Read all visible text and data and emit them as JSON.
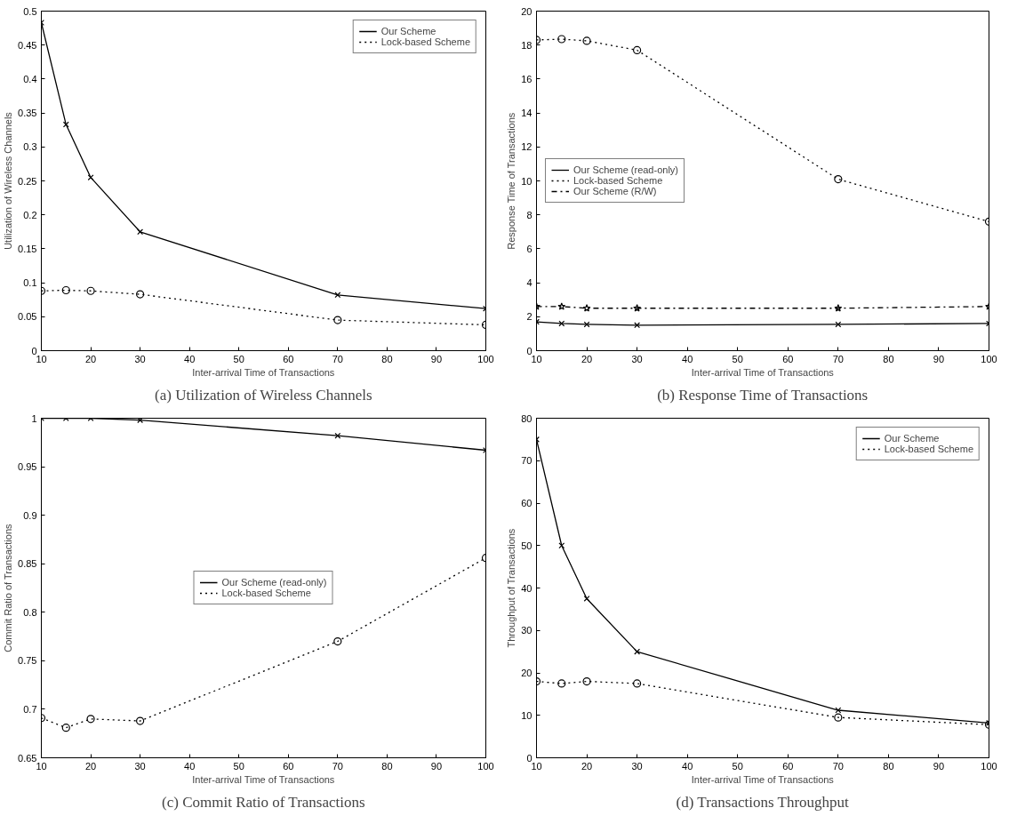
{
  "chart_data": [
    {
      "type": "line",
      "title": "(a) Utilization of Wireless Channels",
      "xlabel": "Inter-arrival Time of Transactions",
      "ylabel": "Utilization of Wireless Channels",
      "x": [
        10,
        15,
        20,
        30,
        70,
        100
      ],
      "xlim": [
        10,
        100
      ],
      "xticks": [
        10,
        20,
        30,
        40,
        50,
        60,
        70,
        80,
        90,
        100
      ],
      "ylim": [
        0,
        0.5
      ],
      "yticks": [
        0,
        0.05,
        0.1,
        0.15,
        0.2,
        0.25,
        0.3,
        0.35,
        0.4,
        0.45,
        0.5
      ],
      "grid": false,
      "legend": "top right",
      "series": [
        {
          "name": "Our Scheme",
          "color": "#000000",
          "marker": "cross",
          "line_style": "solid",
          "values": [
            0.483,
            0.333,
            0.255,
            0.175,
            0.082,
            0.062
          ]
        },
        {
          "name": "Lock-based Scheme",
          "color": "#000000",
          "marker": "circle",
          "line_style": "dotted",
          "values": [
            0.088,
            0.089,
            0.088,
            0.083,
            0.045,
            0.038
          ]
        }
      ]
    },
    {
      "type": "line",
      "title": "(b) Response Time of Transactions",
      "xlabel": "Inter-arrival Time of Transactions",
      "ylabel": "Response Time of Transactions",
      "x": [
        10,
        15,
        20,
        30,
        70,
        100
      ],
      "xlim": [
        10,
        100
      ],
      "xticks": [
        10,
        20,
        30,
        40,
        50,
        60,
        70,
        80,
        90,
        100
      ],
      "ylim": [
        0,
        20
      ],
      "yticks": [
        0,
        2,
        4,
        6,
        8,
        10,
        12,
        14,
        16,
        18,
        20
      ],
      "grid": false,
      "legend": "left",
      "series": [
        {
          "name": "Our Scheme (read-only)",
          "color": "#000000",
          "marker": "cross",
          "line_style": "solid",
          "values": [
            1.7,
            1.6,
            1.55,
            1.5,
            1.55,
            1.6
          ]
        },
        {
          "name": "Lock-based Scheme",
          "color": "#000000",
          "marker": "circle",
          "line_style": "dotted",
          "values": [
            18.3,
            18.35,
            18.25,
            17.7,
            10.1,
            7.6
          ]
        },
        {
          "name": "Our Scheme (R/W)",
          "color": "#000000",
          "marker": "star",
          "line_style": "dashdot",
          "values": [
            2.6,
            2.6,
            2.5,
            2.5,
            2.5,
            2.6
          ]
        }
      ]
    },
    {
      "type": "line",
      "title": "(c) Commit Ratio of Transactions",
      "xlabel": "Inter-arrival Time of Transactions",
      "ylabel": "Commit Ratio of Transactions",
      "x": [
        10,
        15,
        20,
        30,
        70,
        100
      ],
      "xlim": [
        10,
        100
      ],
      "xticks": [
        10,
        20,
        30,
        40,
        50,
        60,
        70,
        80,
        90,
        100
      ],
      "ylim": [
        0.65,
        1
      ],
      "yticks": [
        0.65,
        0.7,
        0.75,
        0.8,
        0.85,
        0.9,
        0.95,
        1
      ],
      "grid": false,
      "legend": "center",
      "series": [
        {
          "name": "Our Scheme (read-only)",
          "color": "#000000",
          "marker": "cross",
          "line_style": "solid",
          "values": [
            1.0,
            1.0,
            1.0,
            0.998,
            0.982,
            0.967
          ]
        },
        {
          "name": "Lock-based Scheme",
          "color": "#000000",
          "marker": "circle",
          "line_style": "dotted",
          "values": [
            0.691,
            0.681,
            0.69,
            0.688,
            0.77,
            0.856
          ]
        }
      ]
    },
    {
      "type": "line",
      "title": "(d) Transactions Throughput",
      "xlabel": "Inter-arrival Time of Transactions",
      "ylabel": "Throughput of Transactions",
      "x": [
        10,
        15,
        20,
        30,
        70,
        100
      ],
      "xlim": [
        10,
        100
      ],
      "xticks": [
        10,
        20,
        30,
        40,
        50,
        60,
        70,
        80,
        90,
        100
      ],
      "ylim": [
        0,
        80
      ],
      "yticks": [
        0,
        10,
        20,
        30,
        40,
        50,
        60,
        70,
        80
      ],
      "grid": false,
      "legend": "top right",
      "series": [
        {
          "name": "Our Scheme",
          "color": "#000000",
          "marker": "cross",
          "line_style": "solid",
          "values": [
            75,
            50,
            37.5,
            25,
            11.2,
            8.2
          ]
        },
        {
          "name": "Lock-based Scheme",
          "color": "#000000",
          "marker": "circle",
          "line_style": "dotted",
          "values": [
            18,
            17.5,
            18,
            17.5,
            9.5,
            7.8
          ]
        }
      ]
    }
  ]
}
